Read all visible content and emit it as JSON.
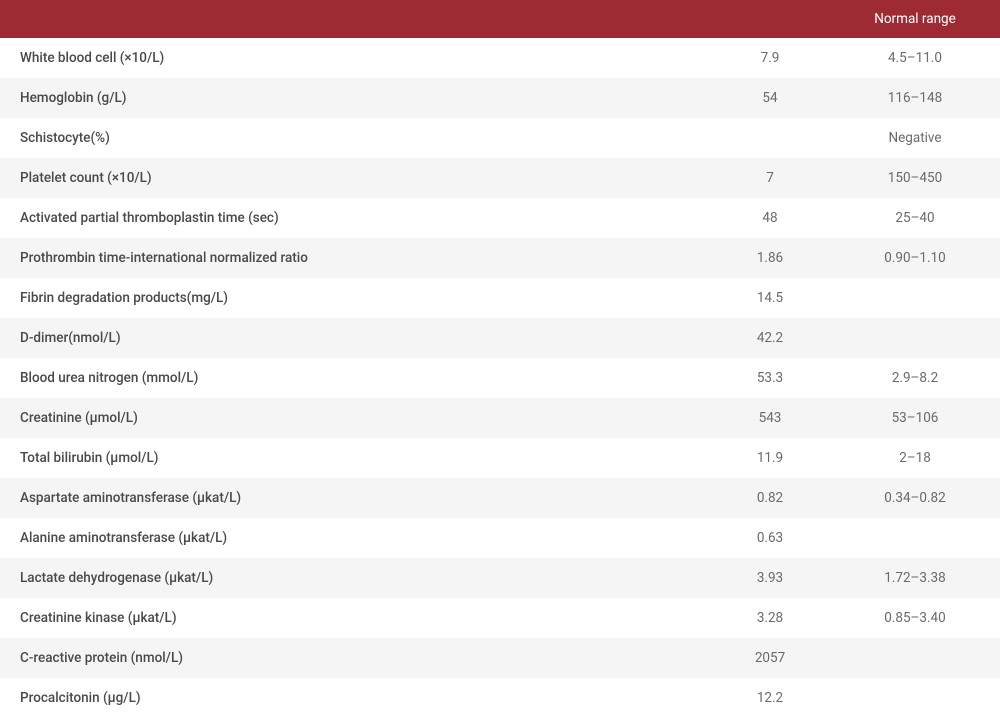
{
  "colors": {
    "header_bg": "#9e2a33",
    "header_text": "#ffffff",
    "row_odd_bg": "#ffffff",
    "row_even_bg": "#f5f5f6",
    "param_text": "#4a4a4a",
    "value_text": "#6a6a6a"
  },
  "header": {
    "parameter": "",
    "value": "",
    "normal_range": "Normal range"
  },
  "rows": [
    {
      "parameter": "White blood cell (×10/L)",
      "value": "7.9",
      "normal_range": "4.5–11.0"
    },
    {
      "parameter": "Hemoglobin (g/L)",
      "value": "54",
      "normal_range": "116–148"
    },
    {
      "parameter": "Schistocyte(%)",
      "value": "",
      "normal_range": "Negative"
    },
    {
      "parameter": "Platelet count (×10/L)",
      "value": "7",
      "normal_range": "150–450"
    },
    {
      "parameter": "Activated partial thromboplastin time (sec)",
      "value": "48",
      "normal_range": "25–40"
    },
    {
      "parameter": "Prothrombin time-international normalized ratio",
      "value": "1.86",
      "normal_range": "0.90–1.10"
    },
    {
      "parameter": "Fibrin degradation products(mg/L)",
      "value": "14.5",
      "normal_range": ""
    },
    {
      "parameter": "D-dimer(nmol/L)",
      "value": "42.2",
      "normal_range": ""
    },
    {
      "parameter": "Blood urea nitrogen (mmol/L)",
      "value": "53.3",
      "normal_range": "2.9–8.2"
    },
    {
      "parameter": "Creatinine (μmol/L)",
      "value": "543",
      "normal_range": "53–106"
    },
    {
      "parameter": "Total bilirubin (μmol/L)",
      "value": "11.9",
      "normal_range": "2–18"
    },
    {
      "parameter": "Aspartate aminotransferase (μkat/L)",
      "value": "0.82",
      "normal_range": "0.34–0.82"
    },
    {
      "parameter": "Alanine aminotransferase (μkat/L)",
      "value": "0.63",
      "normal_range": ""
    },
    {
      "parameter": "Lactate dehydrogenase (μkat/L)",
      "value": "3.93",
      "normal_range": "1.72–3.38"
    },
    {
      "parameter": "Creatinine kinase (μkat/L)",
      "value": "3.28",
      "normal_range": "0.85–3.40"
    },
    {
      "parameter": "C-reactive protein (nmol/L)",
      "value": "2057",
      "normal_range": ""
    },
    {
      "parameter": "Procalcitonin (μg/L)",
      "value": "12.2",
      "normal_range": ""
    }
  ]
}
